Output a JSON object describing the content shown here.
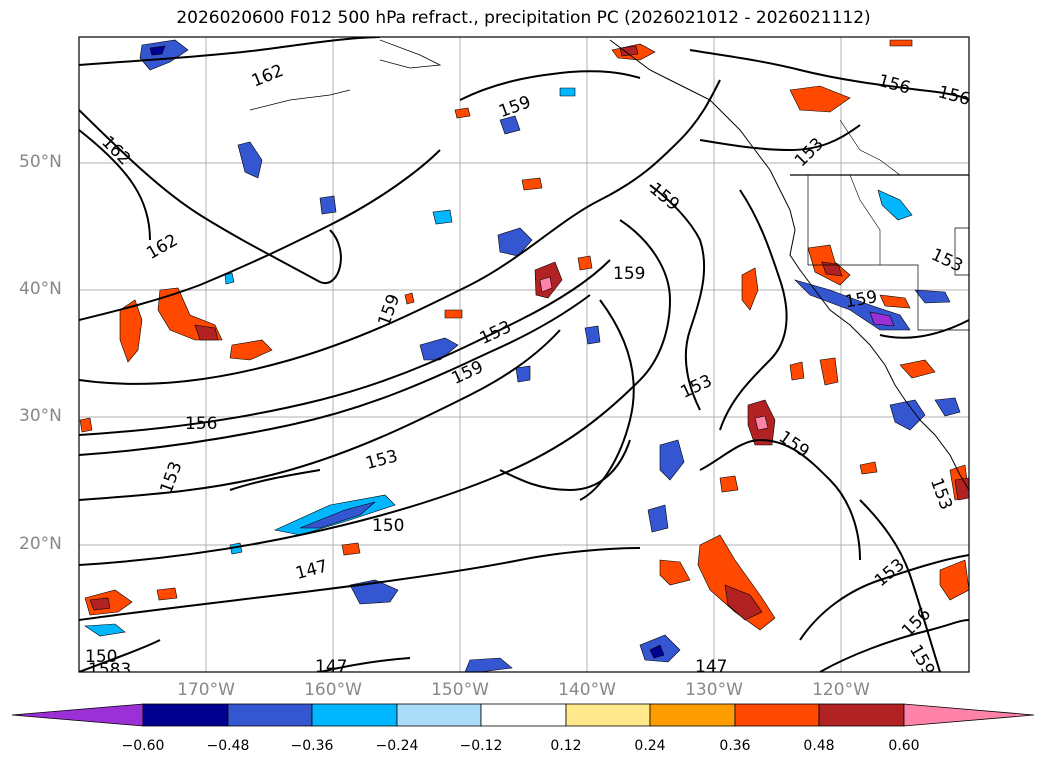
{
  "title": "2026020600 F012 500 hPa refract., precipitation PC (2026021012 - 2026021112)",
  "latitude_labels": [
    "50°N",
    "40°N",
    "30°N",
    "20°N"
  ],
  "longitude_labels": [
    "170°W",
    "160°W",
    "150°W",
    "140°W",
    "130°W",
    "120°W"
  ],
  "colorbar": {
    "ticks": [
      "−0.60",
      "−0.48",
      "−0.36",
      "−0.24",
      "−0.12",
      "0.12",
      "0.24",
      "0.36",
      "0.48",
      "0.60"
    ],
    "colors": {
      "lt_-0.60": "#9b30d6",
      "-0.60_-0.48": "#000090",
      "-0.48_-0.36": "#3456d0",
      "-0.36_-0.24": "#00b7ff",
      "-0.24_-0.12": "#aadcf8",
      "-0.12_0.12": "#ffffff",
      "0.12_0.24": "#ffe98c",
      "0.24_0.36": "#ff9d00",
      "0.36_0.48": "#ff4800",
      "0.48_0.60": "#b22222",
      "gt_0.60": "#ff82a8"
    }
  },
  "contour_labels": [
    "162",
    "162",
    "162",
    "159",
    "159",
    "159",
    "159",
    "159",
    "159",
    "159",
    "156",
    "156",
    "156",
    "156",
    "153",
    "153",
    "153",
    "153",
    "153",
    "153",
    "153",
    "153",
    "153",
    "150",
    "150",
    "147",
    "147",
    "147",
    "159",
    "153",
    "159",
    "1583"
  ]
}
